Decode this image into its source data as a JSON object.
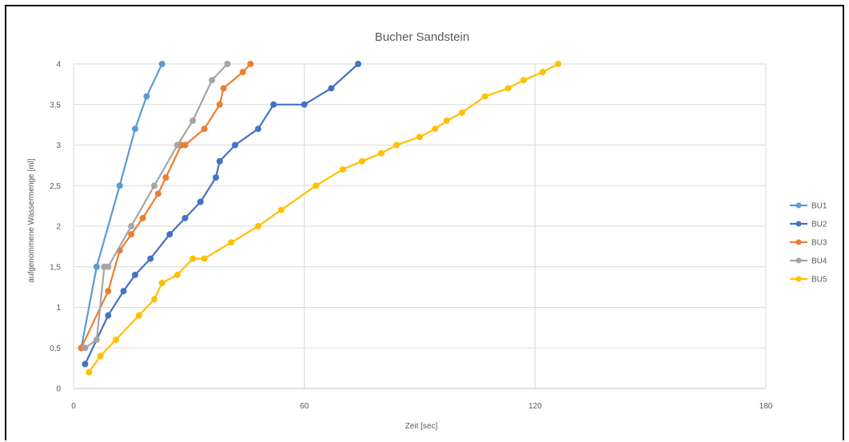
{
  "chart_data": {
    "type": "line",
    "title": "Bucher Sandstein",
    "xlabel": "Zeit [sec]",
    "ylabel": "aufgenommene Wassermenge [ml]",
    "xlim": [
      0,
      180
    ],
    "ylim": [
      0,
      4
    ],
    "x_ticks": [
      "0",
      "60",
      "120",
      "180"
    ],
    "y_ticks": [
      "0",
      "0,5",
      "1",
      "1,5",
      "2",
      "2,5",
      "3",
      "3,5",
      "4"
    ],
    "grid": true,
    "legend_position": "right",
    "series": [
      {
        "name": "BU1",
        "color": "#5B9BD5",
        "x": [
          2,
          6,
          12,
          16,
          19,
          23
        ],
        "y": [
          0.5,
          1.5,
          2.5,
          3.2,
          3.6,
          4.0
        ]
      },
      {
        "name": "BU2",
        "color": "#4472C4",
        "x": [
          3,
          9,
          13,
          16,
          20,
          25,
          29,
          33,
          37,
          38,
          42,
          48,
          52,
          60,
          67,
          74
        ],
        "y": [
          0.3,
          0.9,
          1.2,
          1.4,
          1.6,
          1.9,
          2.1,
          2.3,
          2.6,
          2.8,
          3.0,
          3.2,
          3.5,
          3.5,
          3.7,
          4.0
        ]
      },
      {
        "name": "BU3",
        "color": "#ED7D31",
        "x": [
          2,
          9,
          12,
          15,
          18,
          22,
          24,
          28,
          29,
          34,
          38,
          39,
          44,
          46
        ],
        "y": [
          0.5,
          1.2,
          1.7,
          1.9,
          2.1,
          2.4,
          2.6,
          3.0,
          3.0,
          3.2,
          3.5,
          3.7,
          3.9,
          4.0
        ],
        "note": ""
      },
      {
        "name": "BU4",
        "color": "#A5A5A5",
        "x": [
          3,
          6,
          8,
          9,
          15,
          21,
          27,
          31,
          36,
          40
        ],
        "y": [
          0.5,
          0.6,
          1.5,
          1.5,
          2.0,
          2.5,
          3.0,
          3.3,
          3.8,
          4.0
        ]
      },
      {
        "name": "BU5",
        "color": "#FFC000",
        "x": [
          4,
          7,
          11,
          17,
          21,
          23,
          27,
          31,
          34,
          41,
          48,
          54,
          63,
          70,
          75,
          80,
          84,
          90,
          94,
          97,
          101,
          107,
          113,
          117,
          122,
          126
        ],
        "y": [
          0.2,
          0.4,
          0.6,
          0.9,
          1.1,
          1.3,
          1.4,
          1.6,
          1.6,
          1.8,
          2.0,
          2.2,
          2.5,
          2.7,
          2.8,
          2.9,
          3.0,
          3.1,
          3.2,
          3.3,
          3.4,
          3.6,
          3.7,
          3.8,
          3.9,
          4.0
        ]
      }
    ]
  }
}
